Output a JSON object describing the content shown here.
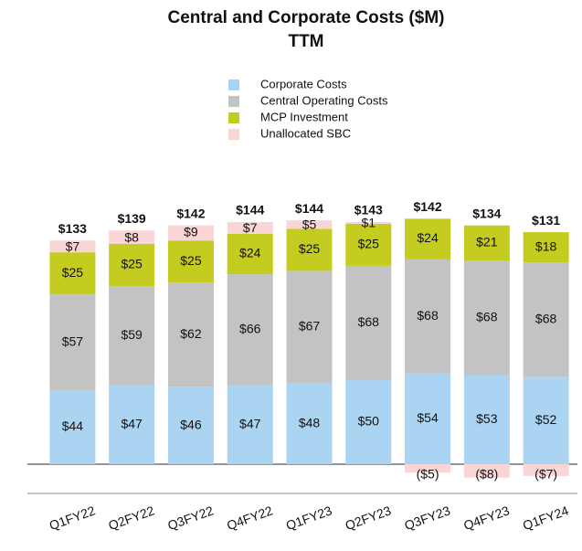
{
  "chart_data": {
    "type": "stacked_bar",
    "title": "Central and Corporate Costs ($M)",
    "subtitle": "TTM",
    "categories": [
      "Q1FY22",
      "Q2FY22",
      "Q3FY22",
      "Q4FY22",
      "Q1FY23",
      "Q2FY23",
      "Q3FY23",
      "Q4FY23",
      "Q1FY24"
    ],
    "series": [
      {
        "name": "Corporate Costs",
        "color": "#aad4f1",
        "values": [
          44,
          47,
          46,
          47,
          48,
          50,
          54,
          53,
          52
        ],
        "value_labels": [
          "$44",
          "$47",
          "$46",
          "$47",
          "$48",
          "$50",
          "$54",
          "$53",
          "$52"
        ]
      },
      {
        "name": "Central Operating Costs",
        "color": "#c3c3c3",
        "values": [
          57,
          59,
          62,
          66,
          67,
          68,
          68,
          68,
          68
        ],
        "value_labels": [
          "$57",
          "$59",
          "$62",
          "$66",
          "$67",
          "$68",
          "$68",
          "$68",
          "$68"
        ]
      },
      {
        "name": "MCP Investment",
        "color": "#c3cc1f",
        "values": [
          25,
          25,
          25,
          24,
          25,
          25,
          24,
          21,
          18
        ],
        "value_labels": [
          "$25",
          "$25",
          "$25",
          "$24",
          "$25",
          "$25",
          "$24",
          "$21",
          "$18"
        ]
      },
      {
        "name": "Unallocated SBC",
        "color": "#f9d5d5",
        "values": [
          7,
          8,
          9,
          7,
          5,
          1,
          -5,
          -8,
          -7
        ],
        "value_labels": [
          "$7",
          "$8",
          "$9",
          "$7",
          "$5",
          "$1",
          "($5)",
          "($8)",
          "($7)"
        ]
      }
    ],
    "totals": {
      "values": [
        133,
        139,
        142,
        144,
        144,
        143,
        142,
        134,
        131
      ],
      "value_labels": [
        "$133",
        "$139",
        "$142",
        "$144",
        "$144",
        "$143",
        "$142",
        "$134",
        "$131"
      ]
    },
    "ylim": [
      -10,
      150
    ]
  }
}
